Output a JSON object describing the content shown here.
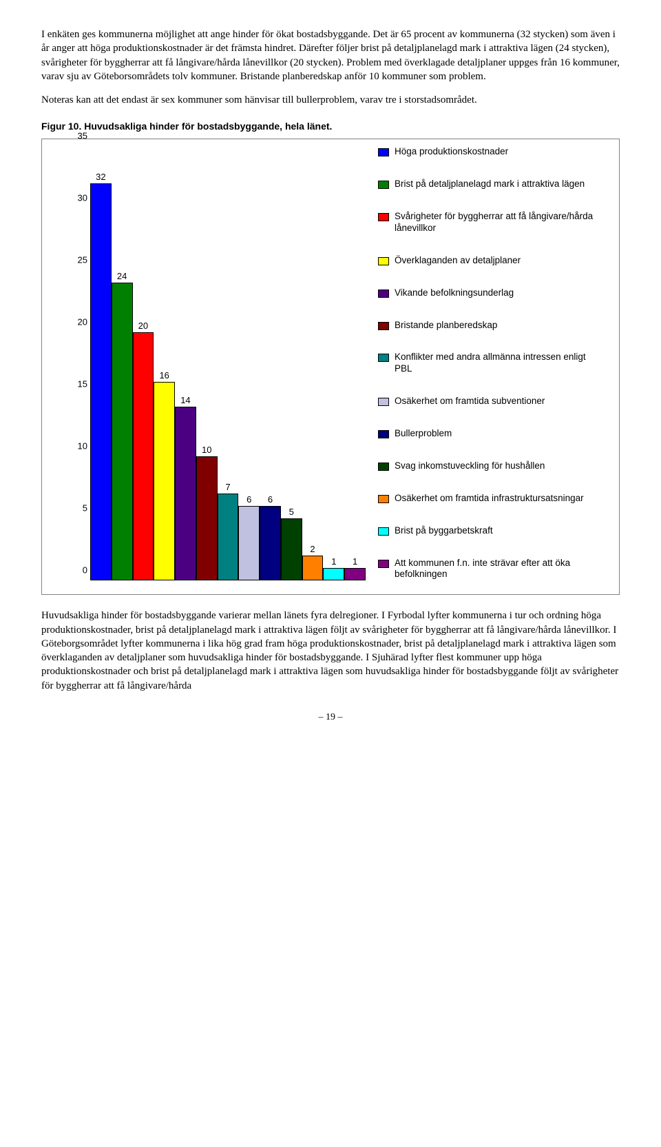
{
  "paragraphs": {
    "p1": "I enkäten ges kommunerna möjlighet att ange hinder för ökat bostadsbyggande. Det är 65 procent av kommunerna (32 stycken) som även i år anger att höga produktionskostnader är det främsta hindret. Därefter följer brist på detaljplanelagd mark i attraktiva lägen (24 stycken), svårigheter för byggherrar att få långivare/hårda lånevillkor (20 stycken). Problem med överklagade detaljplaner uppges från 16 kommuner, varav sju av Göteborsområdets tolv kommuner. Bristande planberedskap anför 10 kommuner som problem.",
    "p2": "Noteras kan att det endast är sex kommuner som hänvisar till bullerproblem, varav tre i storstadsområdet.",
    "p3": "Huvudsakliga hinder för bostadsbyggande varierar mellan länets fyra delregioner. I Fyrbodal lyfter kommunerna i tur och ordning höga produktionskostnader, brist på detaljplanelagd mark i attraktiva lägen följt av svårigheter för byggherrar att få långivare/hårda lånevillkor. I Göteborgsområdet lyfter kommunerna i lika hög grad fram höga produktionskostnader, brist på detaljplanelagd mark i attraktiva lägen som överklaganden av detaljplaner som huvudsakliga hinder för bostadsbyggande. I Sjuhärad lyfter flest kommuner upp höga produktionskostnader och brist på detaljplanelagd mark i attraktiva lägen som huvudsakliga hinder för bostadsbyggande följt av svårigheter för byggherrar att få långivare/hårda"
  },
  "figure_title": "Figur 10. Huvudsakliga hinder för bostadsbyggande, hela länet.",
  "chart": {
    "type": "bar",
    "ymax": 35,
    "ytick_step": 5,
    "yticks": [
      "0",
      "5",
      "10",
      "15",
      "20",
      "25",
      "30",
      "35"
    ],
    "background_color": "#ffffff",
    "border_color": "#808080",
    "label_fontsize": 13,
    "bars": [
      {
        "value": 32,
        "color": "#0000ff",
        "label": "Höga produktionskostnader"
      },
      {
        "value": 24,
        "color": "#008000",
        "label": "Brist på detaljplanelagd mark i attraktiva lägen"
      },
      {
        "value": 20,
        "color": "#ff0000",
        "label": "Svårigheter för byggherrar att få långivare/hårda lånevillkor"
      },
      {
        "value": 16,
        "color": "#ffff00",
        "label": "Överklaganden av detaljplaner"
      },
      {
        "value": 14,
        "color": "#4b0082",
        "label": "Vikande befolkningsunderlag"
      },
      {
        "value": 10,
        "color": "#800000",
        "label": "Bristande planberedskap"
      },
      {
        "value": 7,
        "color": "#008080",
        "label": "Konflikter med andra allmänna intressen enligt PBL"
      },
      {
        "value": 6,
        "color": "#c0c0e0",
        "label": "Osäkerhet om framtida subventioner"
      },
      {
        "value": 6,
        "color": "#000080",
        "label": "Bullerproblem"
      },
      {
        "value": 5,
        "color": "#004000",
        "label": "Svag inkomstuveckling för hushållen"
      },
      {
        "value": 2,
        "color": "#ff8000",
        "label": "Osäkerhet om framtida infrastruktursatsningar"
      },
      {
        "value": 1,
        "color": "#00ffff",
        "label": "Brist på byggarbetskraft"
      },
      {
        "value": 1,
        "color": "#800080",
        "label": "Att kommunen f.n. inte strävar efter att öka befolkningen"
      }
    ]
  },
  "page_number": "– 19 –"
}
